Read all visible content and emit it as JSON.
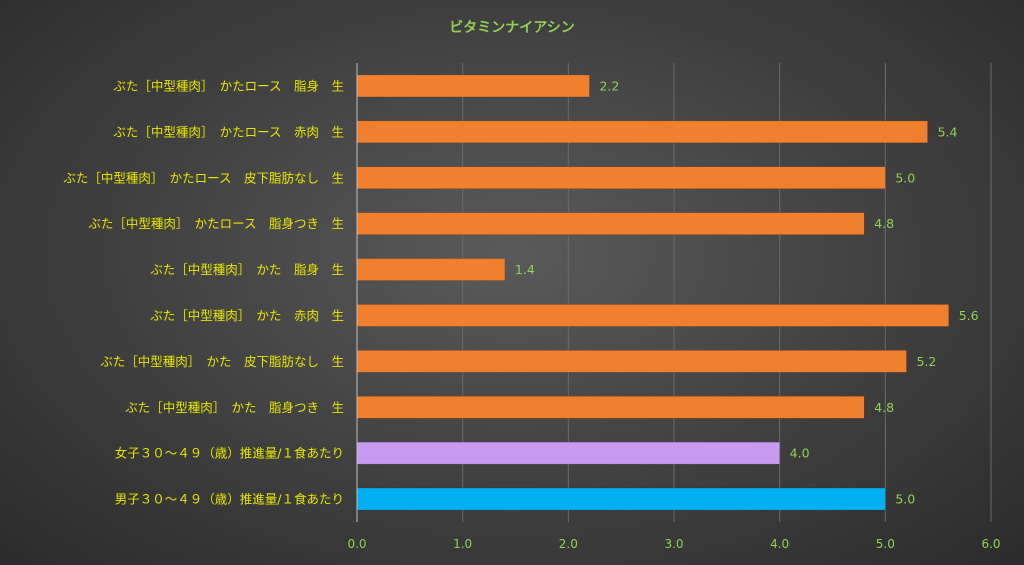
{
  "chart_data": {
    "type": "bar",
    "orientation": "horizontal",
    "title": "ビタミンナイアシン",
    "categories": [
      "ぶた［中型種肉］　かたロース　脂身　生",
      "ぶた［中型種肉］　かたロース　赤肉　生",
      "ぶた［中型種肉］　かたロース　皮下脂肪なし　生",
      "ぶた［中型種肉］　かたロース　脂身つき　生",
      "ぶた［中型種肉］　かた　脂身　生",
      "ぶた［中型種肉］　かた　赤肉　生",
      "ぶた［中型種肉］　かた　皮下脂肪なし　生",
      "ぶた［中型種肉］　かた　脂身つき　生",
      "女子３０～４９（歳）推進量/１食あたり",
      "男子３０～４９（歳）推進量/１食あたり"
    ],
    "values": [
      2.2,
      5.4,
      5.0,
      4.8,
      1.4,
      5.6,
      5.2,
      4.8,
      4.0,
      5.0
    ],
    "data_labels": [
      "2.2",
      "5.4",
      "5.0",
      "4.8",
      "1.4",
      "5.6",
      "5.2",
      "4.8",
      "4.0",
      "5.0"
    ],
    "bar_colors": [
      "#f07f2e",
      "#f07f2e",
      "#f07f2e",
      "#f07f2e",
      "#f07f2e",
      "#f07f2e",
      "#f07f2e",
      "#f07f2e",
      "#c89bf0",
      "#00b0f0"
    ],
    "xlim": [
      0,
      6.0
    ],
    "xticks": [
      "0.0",
      "1.0",
      "2.0",
      "3.0",
      "4.0",
      "5.0",
      "6.0"
    ],
    "xlabel": "",
    "ylabel": "",
    "grid": true,
    "legend": "none"
  }
}
